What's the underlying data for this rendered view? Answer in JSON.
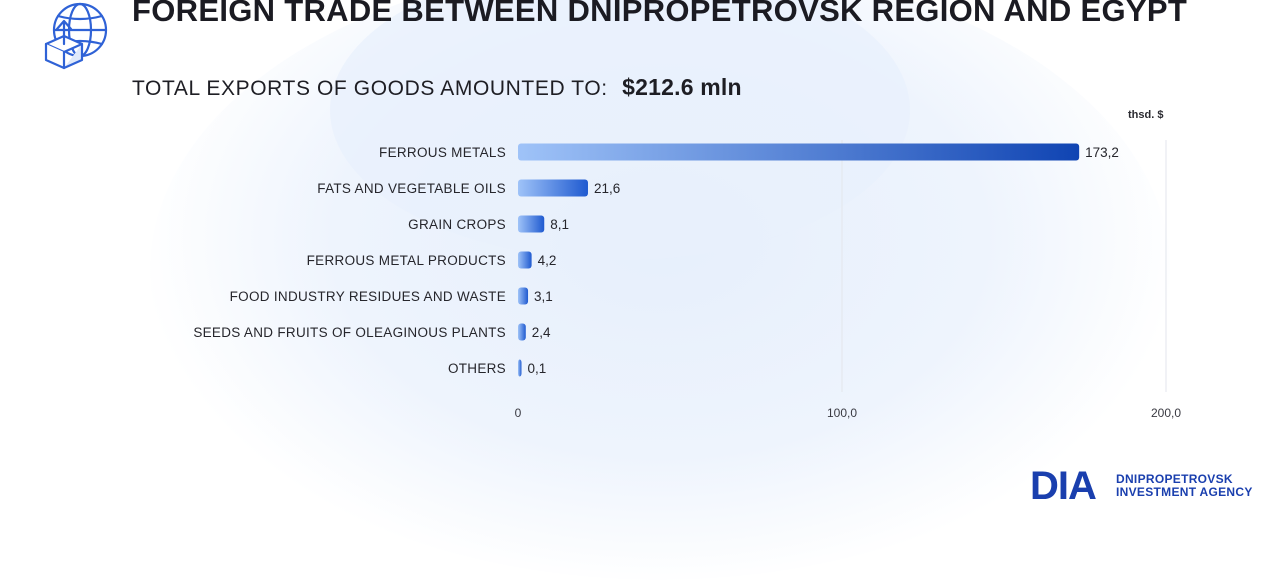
{
  "header": {
    "title": "FOREIGN TRADE BETWEEN DNIPROPETROVSK REGION AND EGYPT",
    "subtitle_label": "TOTAL EXPORTS OF GOODS AMOUNTED TO:",
    "subtitle_value": "$212.6 mln",
    "icon": "globe-export-box-icon"
  },
  "colors": {
    "bar_start": "#9fc3f8",
    "bar_end": "#0a3fb0",
    "accent": "#1a3fae"
  },
  "chart_data": {
    "type": "bar",
    "orientation": "horizontal",
    "unit": "thsd. $",
    "categories": [
      "FERROUS METALS",
      "FATS AND VEGETABLE OILS",
      "GRAIN CROPS",
      "FERROUS METAL PRODUCTS",
      "FOOD INDUSTRY RESIDUES AND WASTE",
      "SEEDS AND FRUITS OF OLEAGINOUS PLANTS",
      "OTHERS"
    ],
    "values": [
      173.2,
      21.6,
      8.1,
      4.2,
      3.1,
      2.4,
      0.1
    ],
    "value_labels": [
      "173,2",
      "21,6",
      "8,1",
      "4,2",
      "3,1",
      "2,4",
      "0,1"
    ],
    "xlim": [
      0,
      200
    ],
    "x_ticks": [
      0,
      100,
      200
    ],
    "x_tick_labels": [
      "0",
      "100,0",
      "200,0"
    ],
    "grid": "vertical"
  },
  "logo": {
    "mark": "DIA",
    "line1": "DNIPROPETROVSK",
    "line2": "INVESTMENT AGENCY"
  }
}
